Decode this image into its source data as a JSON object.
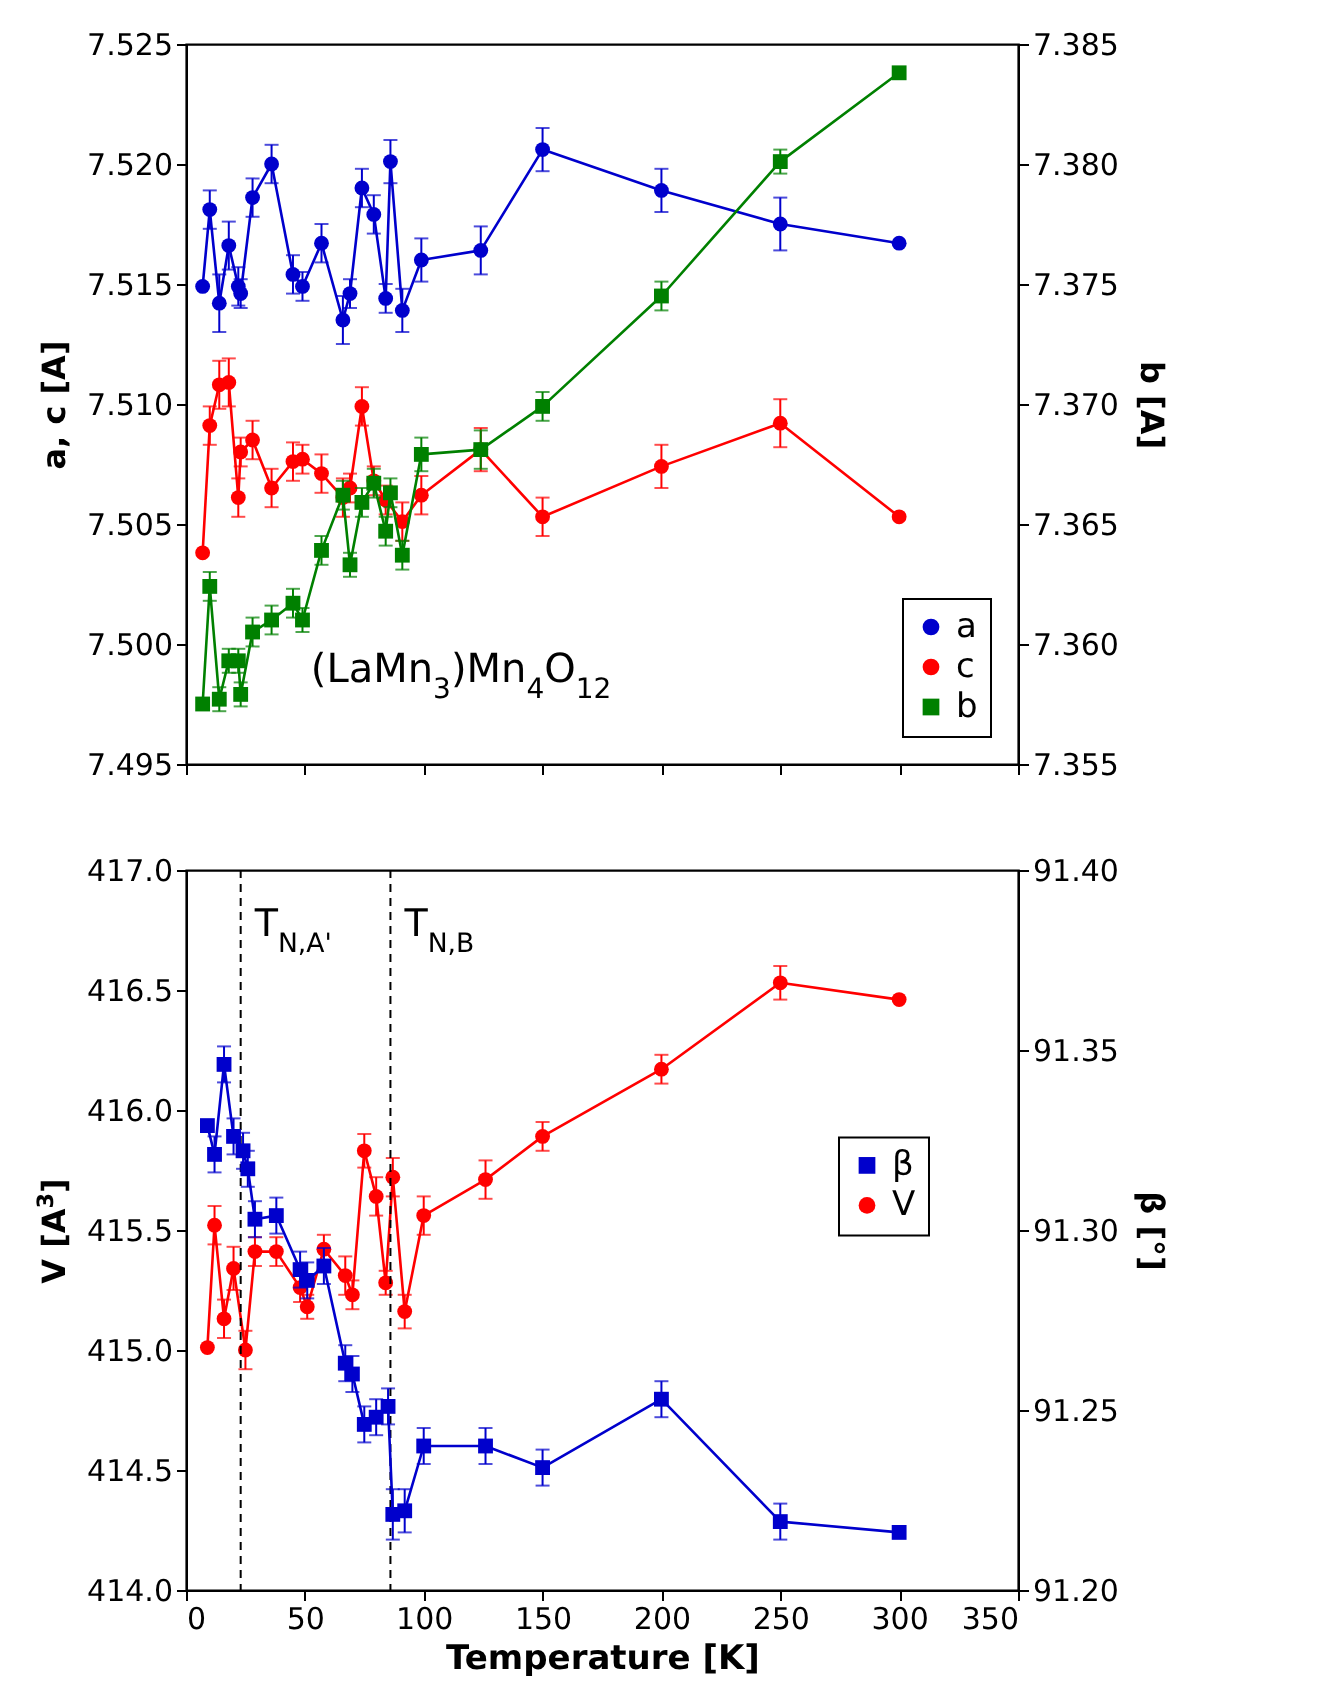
{
  "chart_data": [
    {
      "type": "line",
      "ylabel": "a, c [A]",
      "y2label": "b [A]",
      "xlim": [
        0,
        350
      ],
      "xticks": [
        0,
        50,
        100,
        150,
        200,
        250,
        300,
        350
      ],
      "ylim": [
        7.495,
        7.525
      ],
      "yticks": [
        7.495,
        {
          "value": 7.5,
          "label": "7.500"
        },
        7.505,
        {
          "value": 7.51,
          "label": "7.510"
        },
        7.515,
        {
          "value": 7.52,
          "label": "7.520"
        },
        7.525
      ],
      "y2lim": [
        7.355,
        7.385
      ],
      "y2ticks": [
        7.355,
        {
          "value": 7.36,
          "label": "7.360"
        },
        7.365,
        {
          "value": 7.37,
          "label": "7.370"
        },
        7.375,
        {
          "value": 7.38,
          "label": "7.380"
        },
        7.385
      ],
      "tick_labels": "y",
      "legend": "bottom right",
      "annotations": [
        "(LaMn$_{3}$)Mn$_{4}$O$_{12}$"
      ],
      "series": [
        {
          "name": "a",
          "color": "#0000cc",
          "marker": "circle",
          "x": [
            7,
            10,
            14,
            18,
            22,
            23,
            28,
            36,
            45,
            49,
            57,
            66,
            69,
            74,
            79,
            84,
            86,
            91,
            99,
            124,
            150,
            200,
            250,
            300
          ],
          "values": [
            7.5149,
            7.5181,
            7.5142,
            7.5166,
            7.5149,
            7.5146,
            7.5186,
            7.52,
            7.5154,
            7.5149,
            7.5167,
            7.5135,
            7.5146,
            7.519,
            7.5179,
            7.5144,
            7.5201,
            7.5139,
            7.516,
            7.5164,
            7.5206,
            7.5189,
            7.5175,
            7.5167
          ],
          "errors": [
            null,
            0.0008,
            0.0012,
            0.001,
            0.0008,
            0.0006,
            0.0008,
            0.0008,
            0.0008,
            0.0006,
            0.0008,
            0.001,
            0.0006,
            0.0008,
            0.0008,
            0.0006,
            0.0009,
            0.0009,
            0.0009,
            0.001,
            0.0009,
            0.0009,
            0.0011,
            null
          ]
        },
        {
          "name": "c",
          "color": "#ff0000",
          "marker": "circle",
          "x": [
            7,
            10,
            14,
            18,
            22,
            23,
            28,
            36,
            45,
            49,
            57,
            66,
            69,
            74,
            79,
            84,
            91,
            99,
            124,
            150,
            200,
            250,
            300
          ],
          "values": [
            7.5038,
            7.5091,
            7.5108,
            7.5109,
            7.5061,
            7.508,
            7.5085,
            7.5065,
            7.5076,
            7.5077,
            7.5071,
            7.5061,
            7.5065,
            7.5099,
            7.5068,
            7.506,
            7.5051,
            7.5062,
            7.5081,
            7.5053,
            7.5074,
            7.5092,
            7.5053
          ],
          "errors": [
            null,
            0.0008,
            0.001,
            0.001,
            0.0008,
            0.0006,
            0.0008,
            0.0008,
            0.0008,
            0.0006,
            0.0008,
            0.0008,
            0.0006,
            0.0008,
            0.0006,
            0.0006,
            0.0008,
            0.0008,
            0.0009,
            0.0008,
            0.0009,
            0.001,
            null
          ]
        },
        {
          "name": "b",
          "color": "#008000",
          "marker": "square",
          "axis": "y2",
          "x": [
            7,
            10,
            14,
            18,
            22,
            23,
            28,
            36,
            45,
            49,
            57,
            66,
            69,
            74,
            79,
            84,
            86,
            91,
            99,
            124,
            150,
            200,
            250,
            300
          ],
          "values": [
            7.3575,
            7.3624,
            7.3577,
            7.3593,
            7.3593,
            7.3579,
            7.3605,
            7.361,
            7.3617,
            7.361,
            7.3639,
            7.3662,
            7.3633,
            7.3659,
            7.3667,
            7.3647,
            7.3663,
            7.3637,
            7.3679,
            7.3681,
            7.3699,
            7.3745,
            7.3801,
            7.3838
          ],
          "errors": [
            null,
            0.0006,
            0.0005,
            0.0005,
            0.0005,
            0.0005,
            0.0006,
            0.0006,
            0.0006,
            0.0005,
            0.0006,
            0.0006,
            0.0005,
            0.0006,
            0.0006,
            0.0006,
            0.0006,
            0.0006,
            0.0007,
            0.0008,
            0.0006,
            0.0006,
            0.0005,
            null
          ]
        }
      ]
    },
    {
      "type": "line",
      "xlabel": "Temperature [K]",
      "ylabel": "V [A$^{3}$]",
      "y2label": "β [°]",
      "xlim": [
        0,
        350
      ],
      "xticks": [
        0,
        50,
        100,
        150,
        200,
        250,
        300,
        350
      ],
      "ylim": [
        414,
        417
      ],
      "yticks": [
        {
          "value": 414,
          "label": "414.0"
        },
        414.5,
        {
          "value": 415,
          "label": "415.0"
        },
        415.5,
        {
          "value": 416,
          "label": "416.0"
        },
        416.5,
        {
          "value": 417,
          "label": "417.0"
        }
      ],
      "y2lim": [
        91.2,
        91.4
      ],
      "y2ticks": [
        {
          "value": 91.2,
          "label": "91.20"
        },
        91.25,
        {
          "value": 91.3,
          "label": "91.30"
        },
        91.35,
        {
          "value": 91.4,
          "label": "91.40"
        }
      ],
      "legend": "right",
      "ref_lines": [
        {
          "axis": "x",
          "value": 23,
          "label": "T$_{N,A'}$",
          "line_style": "dashed"
        },
        {
          "axis": "x",
          "value": 86,
          "label": "T$_{N,B}$",
          "line_style": "dashed"
        }
      ],
      "series": [
        {
          "name": "β",
          "color": "#0000cc",
          "marker": "square",
          "axis": "y2",
          "x": [
            9,
            12,
            16,
            20,
            24,
            26,
            29,
            38,
            48,
            51,
            58,
            67,
            70,
            75,
            80,
            85,
            87,
            92,
            100,
            126,
            150,
            200,
            250,
            300
          ],
          "values": [
            91.329,
            91.321,
            91.346,
            91.326,
            91.322,
            91.317,
            91.303,
            91.304,
            91.289,
            91.286,
            91.29,
            91.263,
            91.26,
            91.246,
            91.248,
            91.251,
            91.221,
            91.222,
            91.24,
            91.24,
            91.234,
            91.253,
            91.219,
            91.216
          ],
          "errors": [
            null,
            0.005,
            0.005,
            0.005,
            0.005,
            0.005,
            0.005,
            0.005,
            0.005,
            0.005,
            0.005,
            0.005,
            0.005,
            0.005,
            0.005,
            0.005,
            0.007,
            0.006,
            0.005,
            0.005,
            0.005,
            0.005,
            0.005,
            null
          ]
        },
        {
          "name": "V",
          "color": "#ff0000",
          "marker": "circle",
          "x": [
            9,
            12,
            16,
            20,
            25,
            29,
            38,
            48,
            51,
            58,
            67,
            70,
            75,
            80,
            84,
            87,
            92,
            100,
            126,
            150,
            200,
            250,
            300
          ],
          "values": [
            415.01,
            415.52,
            415.13,
            415.34,
            415.0,
            415.41,
            415.41,
            415.26,
            415.18,
            415.42,
            415.31,
            415.23,
            415.83,
            415.64,
            415.28,
            415.72,
            415.16,
            415.56,
            415.71,
            415.89,
            416.17,
            416.53,
            416.46
          ],
          "errors": [
            null,
            0.08,
            0.08,
            0.09,
            0.08,
            0.06,
            0.06,
            0.06,
            0.05,
            0.06,
            0.08,
            0.06,
            0.07,
            0.08,
            0.05,
            0.08,
            0.07,
            0.08,
            0.08,
            0.06,
            0.06,
            0.07,
            null
          ]
        }
      ]
    }
  ]
}
